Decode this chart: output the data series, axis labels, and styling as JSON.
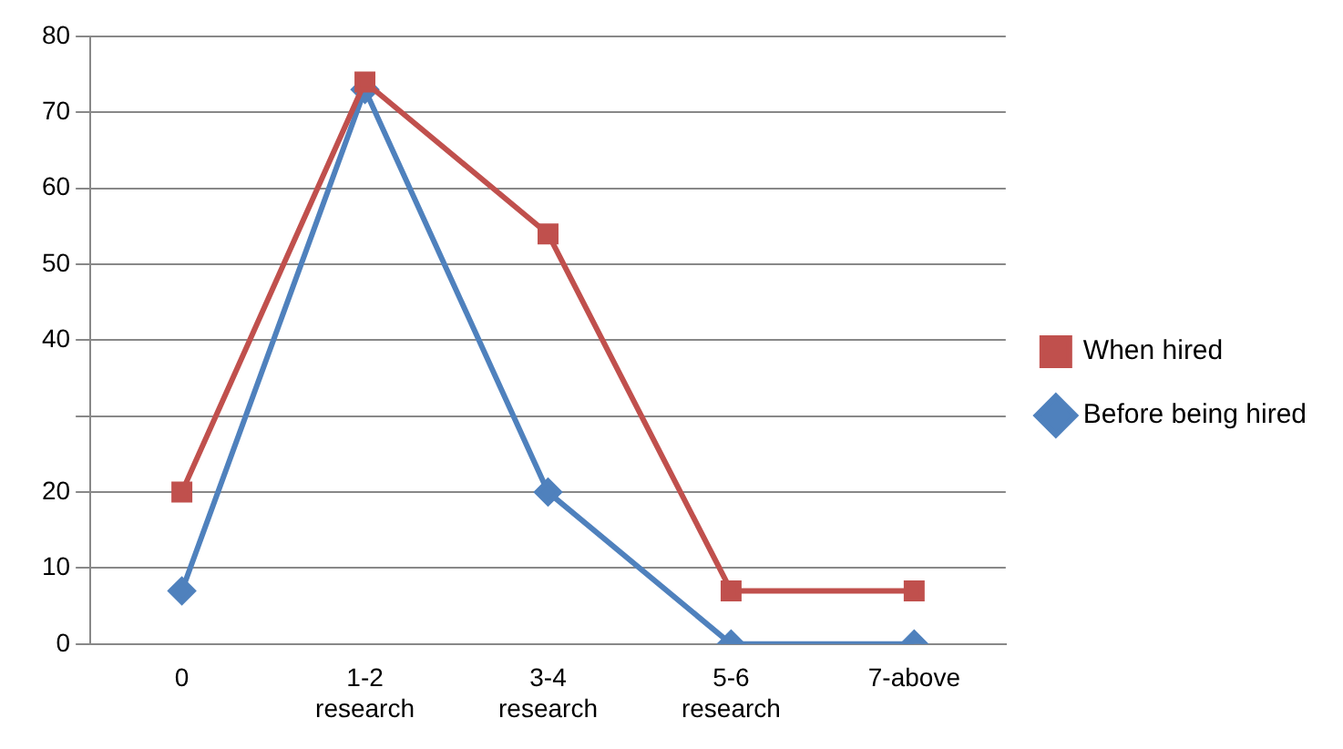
{
  "chart_data": {
    "type": "line",
    "categories": [
      "0",
      "1-2\nresearch",
      "3-4\nresearch",
      "5-6\nresearch",
      "7-above"
    ],
    "series": [
      {
        "name": "When hired",
        "color": "#c0504d",
        "marker": "square",
        "values": [
          20,
          74,
          54,
          7,
          7
        ]
      },
      {
        "name": "Before being hired",
        "color": "#4f81bd",
        "marker": "diamond",
        "values": [
          7,
          73,
          20,
          0,
          0
        ]
      }
    ],
    "ylim": [
      0,
      80
    ],
    "yticks": [
      0,
      10,
      20,
      {
        "value": 30,
        "label": null
      },
      40,
      50,
      60,
      70,
      80
    ],
    "grid": "y",
    "legend": "right",
    "line_style": "solid"
  }
}
